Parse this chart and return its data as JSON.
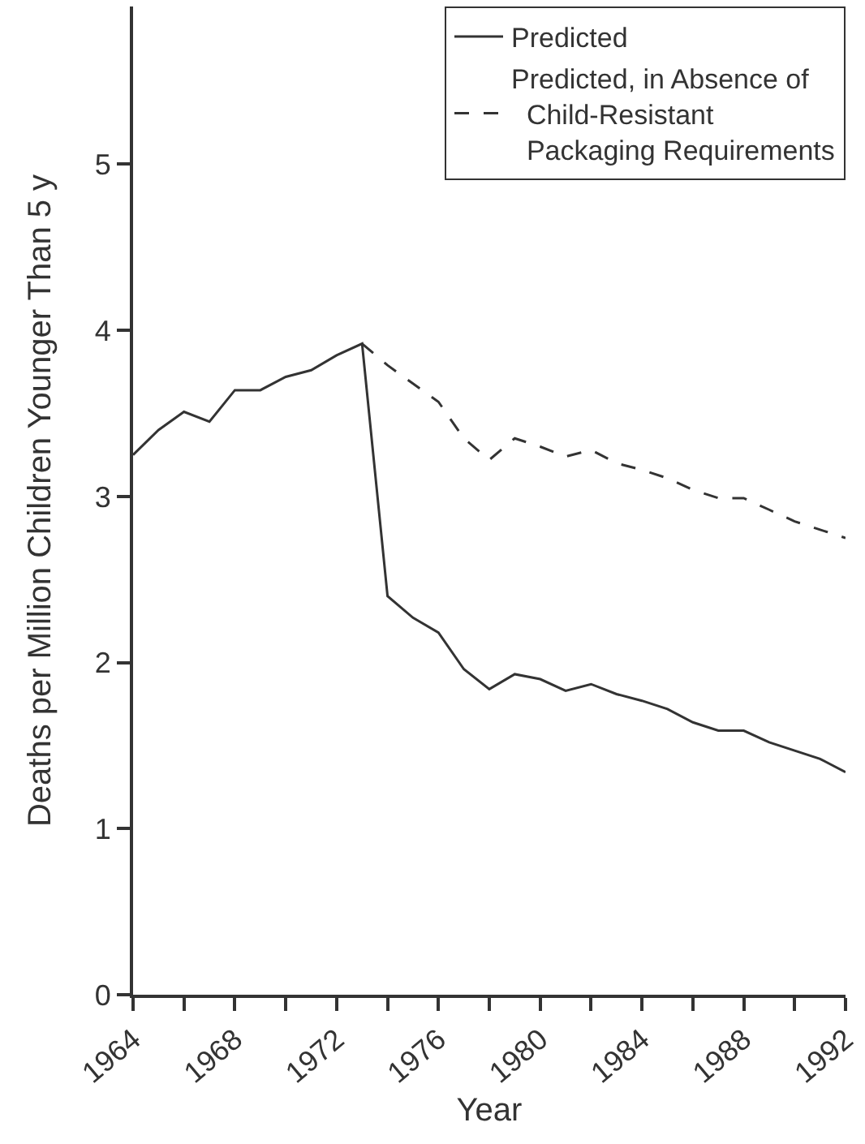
{
  "chart_data": {
    "type": "line",
    "xlabel": "Year",
    "ylabel": "Deaths per Million Children Younger Than 5 y",
    "x": [
      1964,
      1965,
      1966,
      1967,
      1968,
      1969,
      1970,
      1971,
      1972,
      1973,
      1974,
      1975,
      1976,
      1977,
      1978,
      1979,
      1980,
      1981,
      1982,
      1983,
      1984,
      1985,
      1986,
      1987,
      1988,
      1989,
      1990,
      1991,
      1992
    ],
    "series": [
      {
        "name": "Predicted",
        "color": "#333333",
        "line_style": "solid",
        "values": [
          3.25,
          3.4,
          3.51,
          3.45,
          3.64,
          3.64,
          3.72,
          3.76,
          3.85,
          3.92,
          2.4,
          2.27,
          2.18,
          1.96,
          1.84,
          1.93,
          1.9,
          1.83,
          1.87,
          1.81,
          1.77,
          1.72,
          1.64,
          1.59,
          1.59,
          1.52,
          1.47,
          1.42,
          1.34
        ]
      },
      {
        "name": "Predicted, in Absence of Child-Resistant Packaging Requirements",
        "color": "#333333",
        "line_style": "dashed",
        "values": [
          null,
          null,
          null,
          null,
          null,
          null,
          null,
          null,
          null,
          3.92,
          3.79,
          3.68,
          3.57,
          3.35,
          3.22,
          3.35,
          3.3,
          3.24,
          3.28,
          3.2,
          3.16,
          3.11,
          3.04,
          2.99,
          2.99,
          2.92,
          2.85,
          2.8,
          2.75
        ]
      }
    ],
    "xlim": [
      1964,
      1992
    ],
    "xticks": [
      1964,
      {
        "value": 1966,
        "label": null
      },
      1968,
      {
        "value": 1970,
        "label": null
      },
      1972,
      {
        "value": 1974,
        "label": null
      },
      1976,
      {
        "value": 1978,
        "label": null
      },
      1980,
      {
        "value": 1982,
        "label": null
      },
      1984,
      {
        "value": 1986,
        "label": null
      },
      1988,
      {
        "value": 1990,
        "label": null
      },
      1992
    ],
    "ylim": [
      0,
      5.95
    ],
    "yticks": [
      0,
      1,
      2,
      3,
      4,
      5
    ],
    "grid": false,
    "legend": "top right",
    "marker": "none"
  }
}
